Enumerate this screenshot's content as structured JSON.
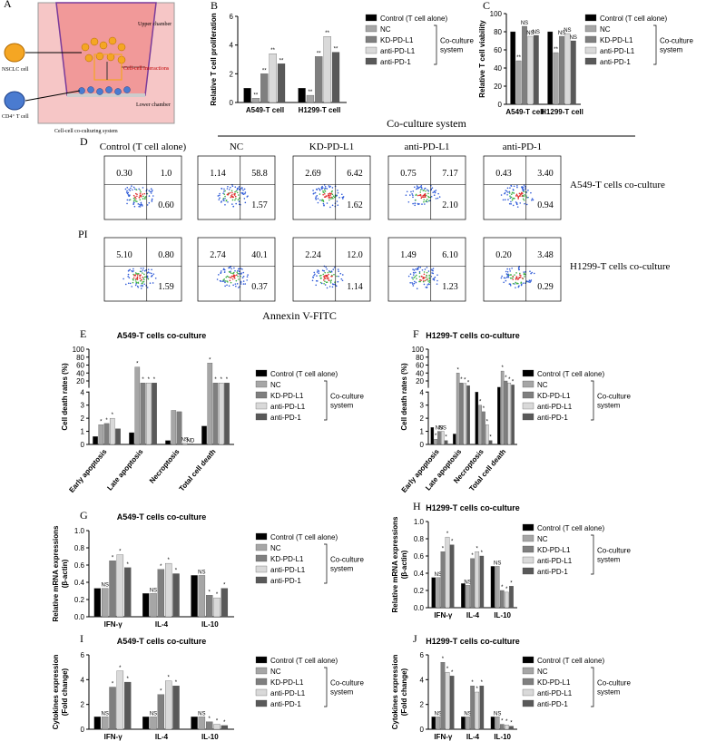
{
  "panel_labels": [
    "A",
    "B",
    "C",
    "D",
    "E",
    "F",
    "G",
    "H",
    "I",
    "J"
  ],
  "diagram": {
    "nsclc": "NSCLC cell",
    "tcell": "CD4⁺ T cell",
    "upper": "Upper chamber",
    "interactions": "Cell-cell interactions",
    "lower": "Lower chamber",
    "system": "Cell-cell co-culturing system"
  },
  "flow": {
    "header": "Co-culture system",
    "columns": [
      "Control (T cell alone)",
      "NC",
      "KD-PD-L1",
      "anti-PD-L1",
      "anti-PD-1"
    ],
    "y_label": "PI",
    "x_label": "Annexin V-FITC",
    "rows": [
      {
        "label": "A549-T cells co-culture",
        "cells": [
          [
            "0.30",
            "1.0",
            "0.60"
          ],
          [
            "1.14",
            "58.8",
            "1.57"
          ],
          [
            "2.69",
            "6.42",
            "1.62"
          ],
          [
            "0.75",
            "7.17",
            "2.10"
          ],
          [
            "0.43",
            "3.40",
            "0.94"
          ]
        ]
      },
      {
        "label": "H1299-T cells co-culture",
        "cells": [
          [
            "5.10",
            "0.80",
            "1.59"
          ],
          [
            "2.74",
            "40.1",
            "0.37"
          ],
          [
            "2.24",
            "12.0",
            "1.14"
          ],
          [
            "1.49",
            "6.10",
            "1.23"
          ],
          [
            "0.20",
            "3.48",
            "0.29"
          ]
        ]
      }
    ]
  },
  "chart_data": [
    {
      "type": "bar",
      "y_label": [
        "Relative T cell proliferation"
      ],
      "categories": [
        "A549-T cell",
        "H1299-T cell"
      ],
      "ylim": [
        0,
        6
      ],
      "yticks": [
        0,
        2,
        4,
        6
      ],
      "legend_note": [
        "Co-culture",
        "system"
      ],
      "series": [
        {
          "name": "Control (T cell alone)",
          "color": "#000000",
          "values": [
            1.0,
            1.0
          ],
          "annotations": [
            null,
            null
          ]
        },
        {
          "name": "NC",
          "color": "#a6a6a6",
          "values": [
            0.3,
            0.5
          ],
          "annotations": [
            "**",
            "**"
          ]
        },
        {
          "name": "KD-PD-L1",
          "color": "#7f7f7f",
          "values": [
            2.0,
            3.2
          ],
          "annotations": [
            "**",
            "**"
          ]
        },
        {
          "name": "anti-PD-L1",
          "color": "#d9d9d9",
          "values": [
            3.4,
            4.6
          ],
          "annotations": [
            "**",
            "**"
          ]
        },
        {
          "name": "anti-PD-1",
          "color": "#595959",
          "values": [
            2.7,
            3.5
          ],
          "annotations": [
            "**",
            "**"
          ]
        }
      ]
    },
    {
      "type": "bar",
      "y_label": [
        "Relative T cell viability"
      ],
      "categories": [
        "A549-T cell",
        "H1299-T cell"
      ],
      "ylim": [
        0,
        100
      ],
      "yticks": [
        0,
        20,
        40,
        60,
        80,
        100
      ],
      "legend_note": [
        "Co-culture",
        "system"
      ],
      "series": [
        {
          "name": "Control (T cell alone)",
          "color": "#000000",
          "values": [
            80,
            80
          ],
          "annotations": [
            null,
            null
          ]
        },
        {
          "name": "NC",
          "color": "#a6a6a6",
          "values": [
            48,
            57
          ],
          "annotations": [
            "**",
            "**"
          ]
        },
        {
          "name": "KD-PD-L1",
          "color": "#7f7f7f",
          "values": [
            86,
            75
          ],
          "annotations": [
            "NS",
            "NS"
          ]
        },
        {
          "name": "anti-PD-L1",
          "color": "#d9d9d9",
          "values": [
            75,
            78
          ],
          "annotations": [
            "NS",
            "NS"
          ]
        },
        {
          "name": "anti-PD-1",
          "color": "#595959",
          "values": [
            76,
            70
          ],
          "annotations": [
            "NS",
            "NS"
          ]
        }
      ]
    },
    {
      "type": "bar",
      "title": "A549-T cells co-culture",
      "y_label": [
        "Cell death rates (%)"
      ],
      "categories": [
        "Early apoptosis",
        "Late apoptosis",
        "Necroptosis",
        "Total cell death"
      ],
      "ylim": [
        0,
        100
      ],
      "ysplit": 4,
      "yticks": [
        0,
        1,
        2,
        3,
        4,
        20,
        40,
        60,
        80,
        100
      ],
      "legend_note": [
        "Co-culture",
        "system"
      ],
      "series": [
        {
          "name": "Control (T cell alone)",
          "color": "#000000",
          "values": [
            0.6,
            0.9,
            0.3,
            1.4
          ],
          "annotations": [
            null,
            null,
            null,
            null
          ]
        },
        {
          "name": "NC",
          "color": "#a6a6a6",
          "values": [
            1.5,
            55,
            2.6,
            65
          ],
          "annotations": [
            "*",
            "*",
            null,
            "*"
          ]
        },
        {
          "name": "KD-PD-L1",
          "color": "#7f7f7f",
          "values": [
            1.6,
            15,
            2.5,
            15
          ],
          "annotations": [
            "*",
            "*",
            null,
            "*"
          ]
        },
        {
          "name": "anti-PD-L1",
          "color": "#d9d9d9",
          "values": [
            2.0,
            15,
            0.1,
            15
          ],
          "annotations": [
            "*",
            "*",
            "NS",
            "*"
          ]
        },
        {
          "name": "anti-PD-1",
          "color": "#595959",
          "values": [
            1.2,
            15,
            0.05,
            15
          ],
          "annotations": [
            null,
            "*",
            "ND",
            "*"
          ]
        }
      ]
    },
    {
      "type": "bar",
      "title": "H1299-T cells co-culture",
      "y_label": [
        "Cell death rates (%)"
      ],
      "categories": [
        "Early apoptosis",
        "Late apoptosis",
        "Necroptosis",
        "Total cell death"
      ],
      "ylim": [
        0,
        100
      ],
      "ysplit": 4,
      "yticks": [
        0,
        1,
        2,
        3,
        4,
        20,
        40,
        60,
        80,
        100
      ],
      "legend_note": [
        "Co-culture",
        "system"
      ],
      "series": [
        {
          "name": "Control (T cell alone)",
          "color": "#000000",
          "values": [
            1.3,
            0.8,
            4.0,
            4.2
          ],
          "annotations": [
            null,
            null,
            null,
            null
          ]
        },
        {
          "name": "NC",
          "color": "#a6a6a6",
          "values": [
            0.4,
            40,
            3.0,
            45
          ],
          "annotations": [
            "*",
            "*",
            "*",
            "*"
          ]
        },
        {
          "name": "KD-PD-L1",
          "color": "#7f7f7f",
          "values": [
            1.0,
            15,
            2.5,
            20
          ],
          "annotations": [
            "NS",
            "*",
            "*",
            "*"
          ]
        },
        {
          "name": "anti-PD-L1",
          "color": "#d9d9d9",
          "values": [
            1.0,
            14,
            1.5,
            15
          ],
          "annotations": [
            "NS",
            "*",
            "*",
            "*"
          ]
        },
        {
          "name": "anti-PD-1",
          "color": "#595959",
          "values": [
            0.3,
            8,
            0.3,
            10
          ],
          "annotations": [
            "*",
            "*",
            "*",
            "*"
          ]
        }
      ]
    },
    {
      "type": "bar",
      "title": "A549-T cells co-culture",
      "y_label": [
        "Relative mRNA expressions",
        "(β-actin)"
      ],
      "categories": [
        "IFN-γ",
        "IL-4",
        "IL-10"
      ],
      "ylim": [
        0,
        1
      ],
      "yticks": [
        {
          "value": 0,
          "label": "0.0"
        },
        0.2,
        0.4,
        0.6,
        0.8,
        {
          "value": 1,
          "label": "1.0"
        }
      ],
      "legend_note": [
        "Co-culture",
        "system"
      ],
      "series": [
        {
          "name": "Control (T cell alone)",
          "color": "#000000",
          "values": [
            0.33,
            0.27,
            0.48
          ],
          "annotations": [
            null,
            null,
            null
          ]
        },
        {
          "name": "NC",
          "color": "#a6a6a6",
          "values": [
            0.33,
            0.27,
            0.48
          ],
          "annotations": [
            "NS",
            "NS",
            "NS"
          ]
        },
        {
          "name": "KD-PD-L1",
          "color": "#7f7f7f",
          "values": [
            0.65,
            0.55,
            0.25
          ],
          "annotations": [
            "*",
            "*",
            "*"
          ]
        },
        {
          "name": "anti-PD-L1",
          "color": "#d9d9d9",
          "values": [
            0.72,
            0.62,
            0.22
          ],
          "annotations": [
            "*",
            "*",
            "*"
          ]
        },
        {
          "name": "anti-PD-1",
          "color": "#595959",
          "values": [
            0.57,
            0.5,
            0.33
          ],
          "annotations": [
            "*",
            "*",
            "*"
          ]
        }
      ]
    },
    {
      "type": "bar",
      "title": "H1299-T cells co-culture",
      "y_label": [
        "Relative mRNA expressions",
        "(β-actin)"
      ],
      "categories": [
        "IFN-γ",
        "IL-4",
        "IL-10"
      ],
      "ylim": [
        0,
        1
      ],
      "yticks": [
        {
          "value": 0,
          "label": "0.0"
        },
        0.2,
        0.4,
        0.6,
        0.8,
        {
          "value": 1,
          "label": "1.0"
        }
      ],
      "legend_note": [
        "Co-culture",
        "system"
      ],
      "series": [
        {
          "name": "Control (T cell alone)",
          "color": "#000000",
          "values": [
            0.35,
            0.28,
            0.48
          ],
          "annotations": [
            null,
            null,
            null
          ]
        },
        {
          "name": "NC",
          "color": "#a6a6a6",
          "values": [
            0.35,
            0.26,
            0.48
          ],
          "annotations": [
            "NS",
            "NS",
            "NS"
          ]
        },
        {
          "name": "KD-PD-L1",
          "color": "#7f7f7f",
          "values": [
            0.65,
            0.57,
            0.2
          ],
          "annotations": [
            "*",
            "*",
            "*"
          ]
        },
        {
          "name": "anti-PD-L1",
          "color": "#d9d9d9",
          "values": [
            0.82,
            0.65,
            0.18
          ],
          "annotations": [
            "*",
            "*",
            "*"
          ]
        },
        {
          "name": "anti-PD-1",
          "color": "#595959",
          "values": [
            0.73,
            0.6,
            0.25
          ],
          "annotations": [
            "*",
            "*",
            "*"
          ]
        }
      ]
    },
    {
      "type": "bar",
      "title": "A549-T cells co-culture",
      "y_label": [
        "Cytokines expression",
        "(Fold change)"
      ],
      "categories": [
        "IFN-γ",
        "IL-4",
        "IL-10"
      ],
      "ylim": [
        0,
        6
      ],
      "yticks": [
        0,
        2,
        4,
        6
      ],
      "legend_note": [
        "Co-culture",
        "system"
      ],
      "series": [
        {
          "name": "Control (T cell alone)",
          "color": "#000000",
          "values": [
            1.0,
            1.0,
            1.0
          ],
          "annotations": [
            null,
            null,
            null
          ]
        },
        {
          "name": "NC",
          "color": "#a6a6a6",
          "values": [
            1.0,
            1.0,
            1.0
          ],
          "annotations": [
            "NS",
            "NS",
            "NS"
          ]
        },
        {
          "name": "KD-PD-L1",
          "color": "#7f7f7f",
          "values": [
            3.4,
            2.8,
            0.6
          ],
          "annotations": [
            "*",
            "*",
            "*"
          ]
        },
        {
          "name": "anti-PD-L1",
          "color": "#d9d9d9",
          "values": [
            4.7,
            3.9,
            0.4
          ],
          "annotations": [
            "*",
            "*",
            "*"
          ]
        },
        {
          "name": "anti-PD-1",
          "color": "#595959",
          "values": [
            3.8,
            3.5,
            0.3
          ],
          "annotations": [
            "*",
            "*",
            "*"
          ]
        }
      ]
    },
    {
      "type": "bar",
      "title": "H1299-T cells co-culture",
      "y_label": [
        "Cytokines expression",
        "(Fold change)"
      ],
      "categories": [
        "IFN-γ",
        "IL-4",
        "IL-10"
      ],
      "ylim": [
        0,
        6
      ],
      "yticks": [
        0,
        2,
        4,
        6
      ],
      "legend_note": [
        "Co-culture",
        "system"
      ],
      "series": [
        {
          "name": "Control (T cell alone)",
          "color": "#000000",
          "values": [
            1.0,
            1.0,
            1.0
          ],
          "annotations": [
            null,
            null,
            null
          ]
        },
        {
          "name": "NC",
          "color": "#a6a6a6",
          "values": [
            1.0,
            1.0,
            1.0
          ],
          "annotations": [
            "NS",
            "NS",
            "NS"
          ]
        },
        {
          "name": "KD-PD-L1",
          "color": "#7f7f7f",
          "values": [
            5.4,
            3.5,
            0.4
          ],
          "annotations": [
            "*",
            "*",
            "*"
          ]
        },
        {
          "name": "anti-PD-L1",
          "color": "#d9d9d9",
          "values": [
            4.6,
            3.0,
            0.35
          ],
          "annotations": [
            "*",
            "*",
            "*"
          ]
        },
        {
          "name": "anti-PD-1",
          "color": "#595959",
          "values": [
            4.3,
            3.5,
            0.25
          ],
          "annotations": [
            "*",
            "*",
            "*"
          ]
        }
      ]
    }
  ]
}
